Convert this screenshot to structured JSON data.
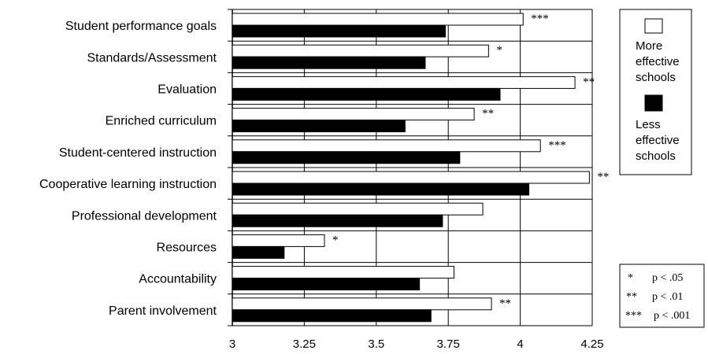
{
  "chart_data": {
    "type": "bar",
    "orientation": "horizontal",
    "categories": [
      "Student performance goals",
      "Standards/Assessment",
      "Evaluation",
      "Enriched curriculum",
      "Student-centered instruction",
      "Cooperative learning instruction",
      "Professional development",
      "Resources",
      "Accountability",
      "Parent involvement"
    ],
    "series": [
      {
        "name": "More effective schools",
        "color": "#ffffff",
        "values": [
          4.01,
          3.89,
          4.19,
          3.84,
          4.07,
          4.24,
          3.87,
          3.32,
          3.77,
          3.9
        ]
      },
      {
        "name": "Less effective schools",
        "color": "#000000",
        "values": [
          3.74,
          3.67,
          3.93,
          3.6,
          3.79,
          4.03,
          3.73,
          3.18,
          3.65,
          3.69
        ]
      }
    ],
    "significance": [
      "***",
      "*",
      "**",
      "**",
      "***",
      "**",
      "",
      "*",
      "",
      "**"
    ],
    "xlim": [
      3,
      4.25
    ],
    "xticks": [
      "3",
      "3.25",
      "3.5",
      "3.75",
      "4",
      "4.25"
    ],
    "grid": true,
    "legend_position": "right",
    "legend_labels": {
      "more_lines": [
        "More",
        "effective",
        "schools"
      ],
      "less_lines": [
        "Less",
        "effective",
        "schools"
      ]
    },
    "significance_key": [
      {
        "symbol": "*",
        "text": "p < .05"
      },
      {
        "symbol": "**",
        "text": "p < .01"
      },
      {
        "symbol": "***",
        "text": "p < .001"
      }
    ]
  }
}
